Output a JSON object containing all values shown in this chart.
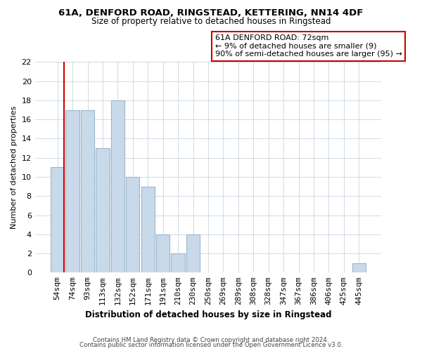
{
  "title1": "61A, DENFORD ROAD, RINGSTEAD, KETTERING, NN14 4DF",
  "title2": "Size of property relative to detached houses in Ringstead",
  "xlabel": "Distribution of detached houses by size in Ringstead",
  "ylabel": "Number of detached properties",
  "bar_labels": [
    "54sqm",
    "74sqm",
    "93sqm",
    "113sqm",
    "132sqm",
    "152sqm",
    "171sqm",
    "191sqm",
    "210sqm",
    "230sqm",
    "250sqm",
    "269sqm",
    "289sqm",
    "308sqm",
    "328sqm",
    "347sqm",
    "367sqm",
    "386sqm",
    "406sqm",
    "425sqm",
    "445sqm"
  ],
  "bar_values": [
    11,
    17,
    17,
    13,
    18,
    10,
    9,
    4,
    2,
    4,
    0,
    0,
    0,
    0,
    0,
    0,
    0,
    0,
    0,
    0,
    1
  ],
  "bar_color": "#c8d9ea",
  "bar_edge_color": "#9ab5cb",
  "highlight_line_color": "#cc0000",
  "annotation_title": "61A DENFORD ROAD: 72sqm",
  "annotation_line1": "← 9% of detached houses are smaller (9)",
  "annotation_line2": "90% of semi-detached houses are larger (95) →",
  "annotation_box_color": "#ffffff",
  "annotation_box_edge": "#cc0000",
  "ylim": [
    0,
    22
  ],
  "yticks": [
    0,
    2,
    4,
    6,
    8,
    10,
    12,
    14,
    16,
    18,
    20,
    22
  ],
  "footer1": "Contains HM Land Registry data © Crown copyright and database right 2024.",
  "footer2": "Contains public sector information licensed under the Open Government Licence v3.0.",
  "bg_color": "#ffffff",
  "grid_color": "#c8d5e0"
}
